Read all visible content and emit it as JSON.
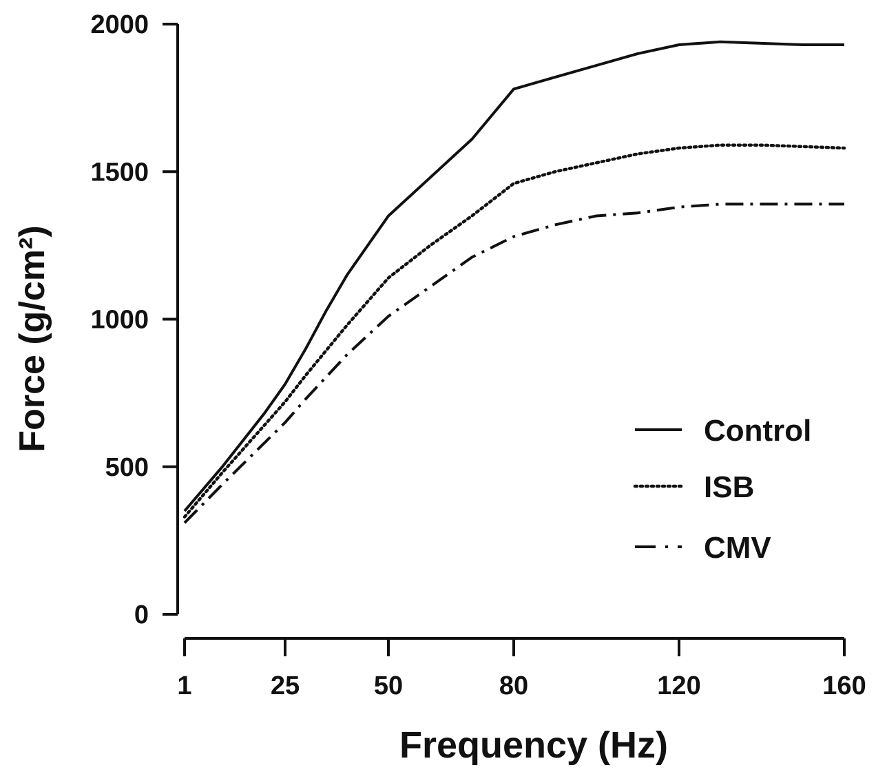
{
  "chart_data": {
    "type": "line",
    "xlabel": "Frequency (Hz)",
    "ylabel": "Force (g/cm²)",
    "x_ticks": [
      "1",
      "25",
      "50",
      "80",
      "120",
      "160"
    ],
    "y_ticks": [
      "0",
      "500",
      "1000",
      "1500",
      "2000"
    ],
    "ylim": [
      0,
      2000
    ],
    "x_scale": "categorical-evenly-spaced-ticks",
    "legend_position": "right",
    "grid": false,
    "series": [
      {
        "name": "Control",
        "style": "solid",
        "color": "#111111",
        "points": [
          [
            1,
            350
          ],
          [
            10,
            500
          ],
          [
            20,
            680
          ],
          [
            25,
            780
          ],
          [
            30,
            900
          ],
          [
            35,
            1030
          ],
          [
            40,
            1150
          ],
          [
            50,
            1350
          ],
          [
            60,
            1480
          ],
          [
            70,
            1610
          ],
          [
            80,
            1780
          ],
          [
            90,
            1820
          ],
          [
            100,
            1860
          ],
          [
            110,
            1900
          ],
          [
            120,
            1930
          ],
          [
            130,
            1940
          ],
          [
            140,
            1935
          ],
          [
            150,
            1930
          ],
          [
            160,
            1930
          ]
        ]
      },
      {
        "name": "ISB",
        "style": "dotted",
        "color": "#111111",
        "points": [
          [
            1,
            330
          ],
          [
            10,
            480
          ],
          [
            20,
            640
          ],
          [
            25,
            720
          ],
          [
            30,
            810
          ],
          [
            40,
            980
          ],
          [
            50,
            1140
          ],
          [
            60,
            1250
          ],
          [
            70,
            1350
          ],
          [
            80,
            1460
          ],
          [
            90,
            1500
          ],
          [
            100,
            1530
          ],
          [
            110,
            1560
          ],
          [
            120,
            1580
          ],
          [
            130,
            1590
          ],
          [
            140,
            1590
          ],
          [
            150,
            1585
          ],
          [
            160,
            1580
          ]
        ]
      },
      {
        "name": "CMV",
        "style": "dashdot",
        "color": "#111111",
        "points": [
          [
            1,
            310
          ],
          [
            10,
            440
          ],
          [
            20,
            580
          ],
          [
            25,
            650
          ],
          [
            30,
            730
          ],
          [
            40,
            880
          ],
          [
            50,
            1010
          ],
          [
            60,
            1110
          ],
          [
            70,
            1210
          ],
          [
            80,
            1280
          ],
          [
            90,
            1320
          ],
          [
            100,
            1350
          ],
          [
            110,
            1360
          ],
          [
            120,
            1380
          ],
          [
            130,
            1390
          ],
          [
            140,
            1390
          ],
          [
            150,
            1390
          ],
          [
            160,
            1390
          ]
        ]
      }
    ]
  }
}
